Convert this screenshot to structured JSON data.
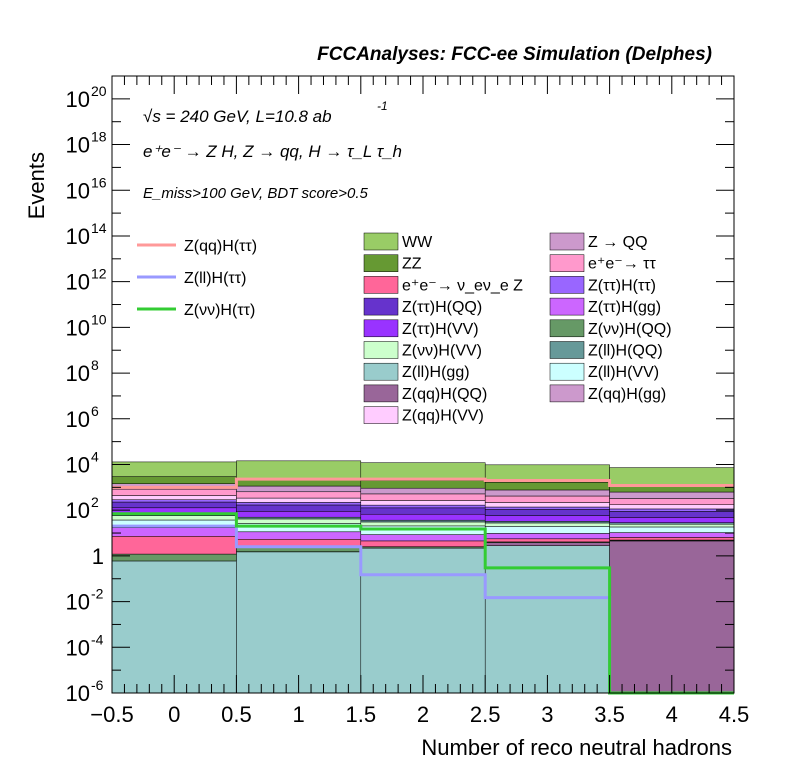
{
  "header": {
    "title": "FCCAnalyses: FCC-ee Simulation (Delphes)"
  },
  "annotations": {
    "energy": "√s = 240 GeV, L=10.8 ab",
    "lumi_exp": "-1",
    "process": "e⁺e⁻ → Z H, Z → qq, H → τ_L τ_h",
    "selection": "E_miss>100 GeV, BDT score>0.5"
  },
  "chart_data": {
    "type": "bar",
    "stacked": true,
    "log_y": true,
    "xlabel": "Number of reco neutral hadrons",
    "ylabel": "Events",
    "xlim": [
      -0.5,
      4.5
    ],
    "ylim": [
      1e-06,
      1e+21
    ],
    "x_ticks": [
      "−0.5",
      "0",
      "0.5",
      "1",
      "1.5",
      "2",
      "2.5",
      "3",
      "3.5",
      "4",
      "4.5"
    ],
    "y_ticks": [
      {
        "base": "10",
        "exp": "-6",
        "value": 1e-06
      },
      {
        "base": "10",
        "exp": "-4",
        "value": 0.0001
      },
      {
        "base": "10",
        "exp": "-2",
        "value": 0.01
      },
      {
        "base": "1",
        "exp": "",
        "value": 1
      },
      {
        "base": "10",
        "exp": "2",
        "value": 100.0
      },
      {
        "base": "10",
        "exp": "4",
        "value": 10000.0
      },
      {
        "base": "10",
        "exp": "6",
        "value": 1000000.0
      },
      {
        "base": "10",
        "exp": "8",
        "value": 100000000.0
      },
      {
        "base": "10",
        "exp": "10",
        "value": 10000000000.0
      },
      {
        "base": "10",
        "exp": "12",
        "value": 1000000000000.0
      },
      {
        "base": "10",
        "exp": "14",
        "value": 100000000000000.0
      },
      {
        "base": "10",
        "exp": "16",
        "value": 1e+16
      },
      {
        "base": "10",
        "exp": "18",
        "value": 1e+18
      },
      {
        "base": "10",
        "exp": "20",
        "value": 1e+20
      }
    ],
    "bins": [
      [
        -0.5,
        0.5
      ],
      [
        0.5,
        1.5
      ],
      [
        1.5,
        2.5
      ],
      [
        2.5,
        3.5
      ],
      [
        3.5,
        4.5
      ]
    ],
    "stack_bottom_to_top": [
      {
        "name": "Z(ll)H(gg)",
        "color": "#99cccc",
        "values": [
          0.6,
          1.5,
          2.2,
          2.8,
          0
        ]
      },
      {
        "name": "Z(qq)H(QQ)",
        "color": "#996699",
        "values": [
          0,
          0.03,
          0.03,
          1.0,
          4.5
        ]
      },
      {
        "name": "Z(qq)H(gg)",
        "color": "#cc99cc",
        "values": [
          0,
          0,
          0,
          0,
          0.15
        ]
      },
      {
        "name": "Z(νν)H(QQ)",
        "color": "#669966",
        "values": [
          0.6,
          0.8,
          0.3,
          0.3,
          0.3
        ]
      },
      {
        "name": "e⁺e⁻→ ν_eν_e Z",
        "color": "#ff6699",
        "values": [
          6,
          3,
          2,
          1.5,
          1.5
        ]
      },
      {
        "name": "Z(ττ)H(gg)",
        "color": "#cc66ff",
        "values": [
          10,
          6,
          4,
          4,
          4
        ]
      },
      {
        "name": "Z(ll)H(VV)",
        "color": "#ccffff",
        "values": [
          20,
          15,
          12,
          10,
          8
        ]
      },
      {
        "name": "Z(νν)H(VV)",
        "color": "#ccffcc",
        "values": [
          20,
          15,
          10,
          8,
          6
        ]
      },
      {
        "name": "Z(ll)H(QQ)",
        "color": "#669999",
        "values": [
          10,
          8,
          6,
          5,
          4
        ]
      },
      {
        "name": "Z(ττ)H(VV)",
        "color": "#9933ff",
        "values": [
          60,
          40,
          30,
          25,
          20
        ]
      },
      {
        "name": "Z(ττ)H(QQ)",
        "color": "#6633cc",
        "values": [
          100,
          80,
          60,
          50,
          40
        ]
      },
      {
        "name": "Z(ττ)H(ττ)",
        "color": "#9966ff",
        "values": [
          60,
          50,
          40,
          30,
          25
        ]
      },
      {
        "name": "Z(qq)H(VV)",
        "color": "#ffccff",
        "values": [
          150,
          120,
          100,
          80,
          60
        ]
      },
      {
        "name": "e⁺e⁻→ ττ",
        "color": "#ff99cc",
        "values": [
          400,
          300,
          250,
          200,
          150
        ]
      },
      {
        "name": "Z → QQ",
        "color": "#cc99cc",
        "values": [
          600,
          500,
          400,
          350,
          300
        ]
      },
      {
        "name": "ZZ",
        "color": "#669933",
        "values": [
          1500,
          1300,
          1100,
          900,
          700
        ]
      },
      {
        "name": "WW",
        "color": "#99cc66",
        "values": [
          10000,
          12000,
          10000,
          8000,
          6000
        ]
      }
    ],
    "signal_lines": [
      {
        "name": "Z(qq)H(ττ)",
        "color": "#ff9999",
        "values": [
          1000,
          2300,
          2300,
          2000,
          1200
        ]
      },
      {
        "name": "Z(ll)H(ττ)",
        "color": "#9999ff",
        "values": [
          20,
          2.5,
          0.15,
          0.015,
          1e-06
        ]
      },
      {
        "name": "Z(νν)H(ττ)",
        "color": "#33cc33",
        "values": [
          70,
          20,
          15,
          0.3,
          1e-06
        ]
      }
    ],
    "legend": {
      "placement": "upper",
      "lines": [
        "Z(qq)H(ττ)",
        "Z(ll)H(ττ)",
        "Z(νν)H(ττ)"
      ],
      "col1": [
        {
          "label": "WW",
          "color": "#99cc66"
        },
        {
          "label": "ZZ",
          "color": "#669933"
        },
        {
          "label": "e⁺e⁻→ ν_eν_e Z",
          "color": "#ff6699"
        },
        {
          "label": "Z(ττ)H(QQ)",
          "color": "#6633cc"
        },
        {
          "label": "Z(ττ)H(VV)",
          "color": "#9933ff"
        },
        {
          "label": "Z(νν)H(VV)",
          "color": "#ccffcc"
        },
        {
          "label": "Z(ll)H(gg)",
          "color": "#99cccc"
        },
        {
          "label": "Z(qq)H(QQ)",
          "color": "#996699"
        },
        {
          "label": "Z(qq)H(VV)",
          "color": "#ffccff"
        }
      ],
      "col2": [
        {
          "label": "Z → QQ",
          "color": "#cc99cc"
        },
        {
          "label": "e⁺e⁻→ ττ",
          "color": "#ff99cc"
        },
        {
          "label": "Z(ττ)H(ττ)",
          "color": "#9966ff"
        },
        {
          "label": "Z(ττ)H(gg)",
          "color": "#cc66ff"
        },
        {
          "label": "Z(νν)H(QQ)",
          "color": "#669966"
        },
        {
          "label": "Z(ll)H(QQ)",
          "color": "#669999"
        },
        {
          "label": "Z(ll)H(VV)",
          "color": "#ccffff"
        },
        {
          "label": "Z(qq)H(gg)",
          "color": "#cc99cc"
        }
      ]
    }
  }
}
